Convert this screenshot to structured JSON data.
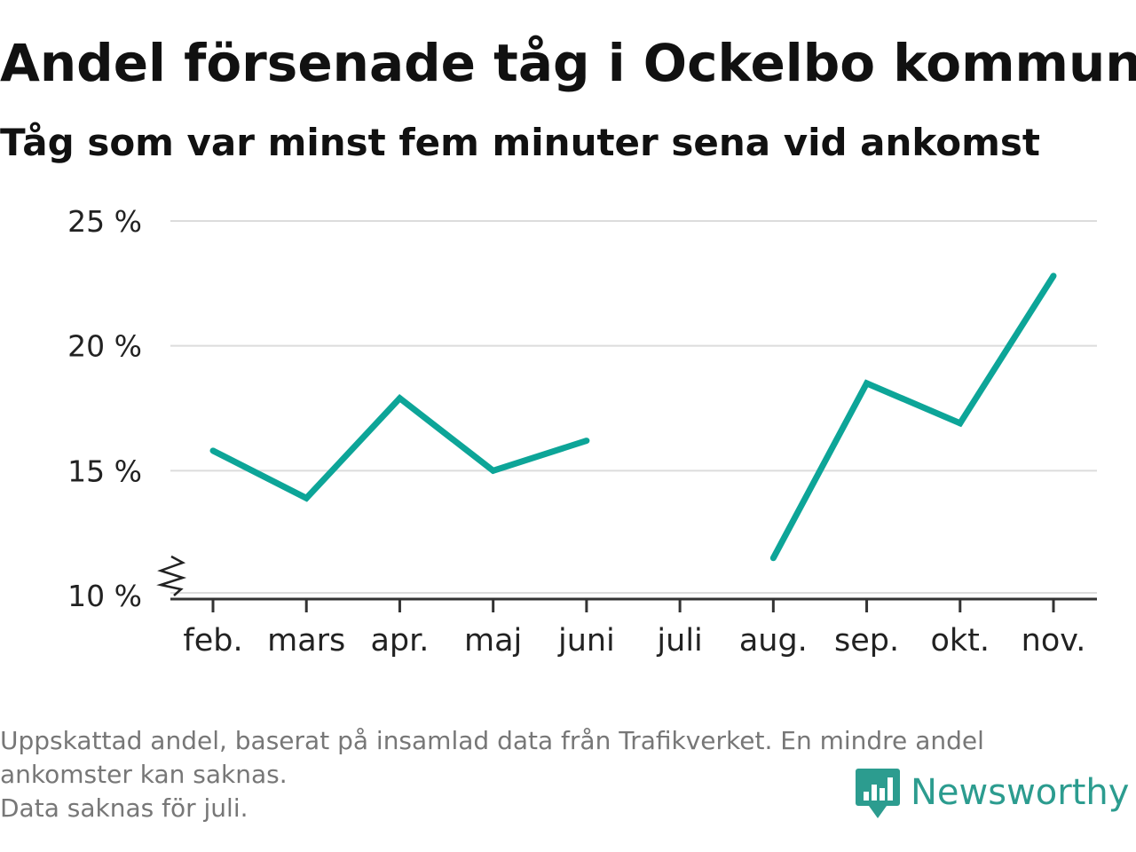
{
  "title": "Andel försenade tåg i Ockelbo kommun",
  "subtitle": "Tåg som var minst fem minuter sena vid ankomst",
  "footnote": {
    "line1": "Uppskattad andel, baserat på insamlad data från Trafikverket. En mindre andel",
    "line2": "ankomster kan saknas.",
    "line3": "Data saknas för juli."
  },
  "brand": {
    "name": "Newsworthy",
    "icon": "newsworthy-logo-icon",
    "color": "#2c9c8f"
  },
  "chart_data": {
    "type": "line",
    "categories": [
      "feb.",
      "mars",
      "apr.",
      "maj",
      "juni",
      "juli",
      "aug.",
      "sep.",
      "okt.",
      "nov."
    ],
    "series": [
      {
        "values": [
          15.8,
          13.9,
          17.9,
          15.0,
          16.2,
          null,
          11.5,
          18.5,
          16.9,
          22.8
        ],
        "color": "#0da598"
      }
    ],
    "ylim": [
      10,
      25
    ],
    "yticks": [
      10,
      15,
      20,
      25
    ],
    "ytick_labels": [
      "10 %",
      "15 %",
      "20 %",
      "25 %"
    ],
    "grid": true,
    "axis_break": true,
    "xlabel": "",
    "ylabel": ""
  }
}
